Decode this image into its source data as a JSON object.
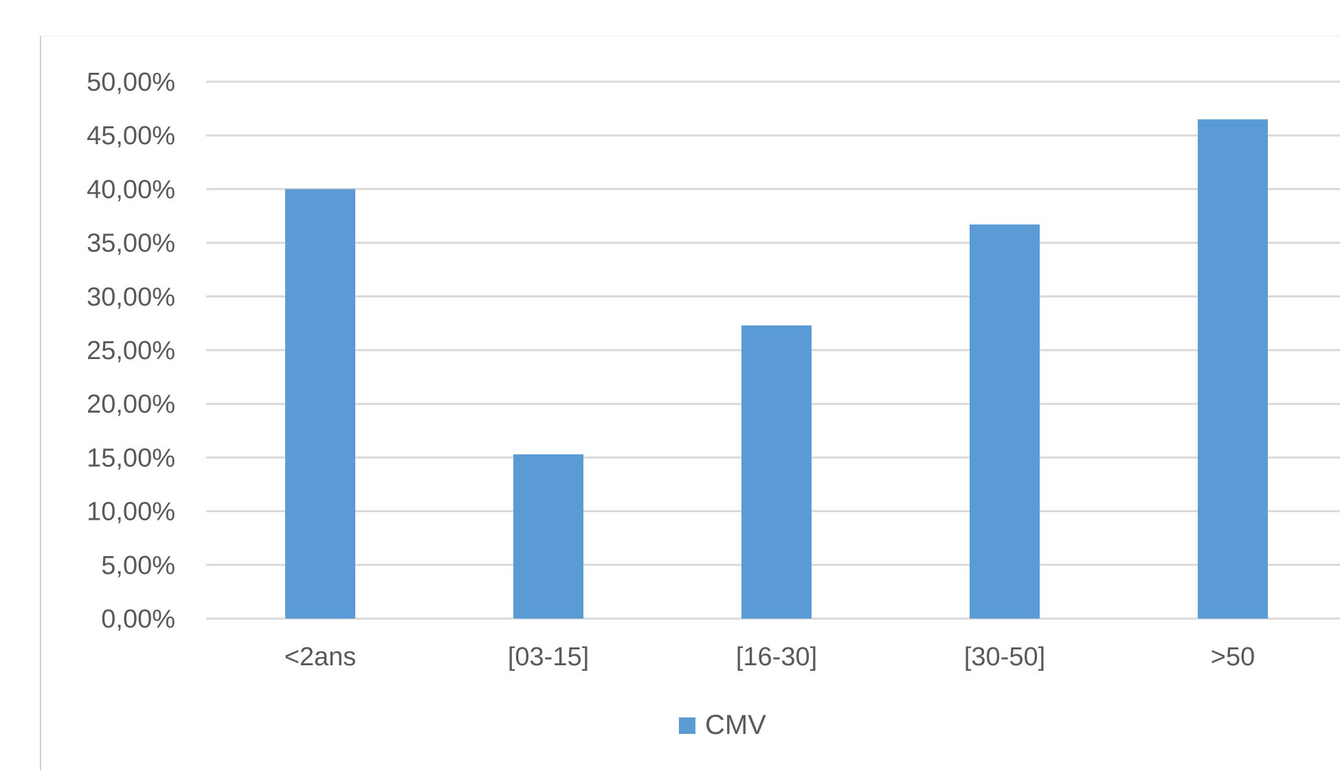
{
  "chart_data": {
    "type": "bar",
    "title": "",
    "xlabel": "",
    "ylabel": "",
    "categories": [
      "<2ans",
      "[03-15]",
      "[16-30]",
      "[30-50]",
      ">50"
    ],
    "series": [
      {
        "name": "CMV",
        "values": [
          40.0,
          15.3,
          27.3,
          36.7,
          46.5
        ],
        "color": "#5b9bd5"
      }
    ],
    "ylim": [
      0,
      50
    ],
    "yticks": [
      0,
      5,
      10,
      15,
      20,
      25,
      30,
      35,
      40,
      45,
      50
    ],
    "ytick_labels": [
      "0,00%",
      "5,00%",
      "10,00%",
      "15,00%",
      "20,00%",
      "25,00%",
      "30,00%",
      "35,00%",
      "40,00%",
      "45,00%",
      "50,00%"
    ],
    "grid": true,
    "legend": "bottom-center",
    "colors": {
      "gridline": "#d9d9d9",
      "text": "#595959"
    }
  }
}
